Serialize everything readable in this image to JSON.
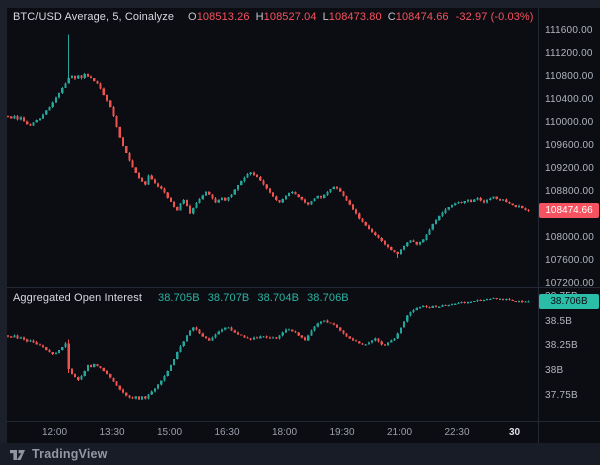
{
  "header": {
    "symbol": "BTC/USD Average, 5, Coinalyze",
    "o_label": "O",
    "o_value": "108513.26",
    "h_label": "H",
    "h_value": "108527.04",
    "l_label": "L",
    "l_value": "108473.80",
    "c_label": "C",
    "c_value": "108474.66",
    "change": "-32.97 (-0.03%)"
  },
  "oi_panel": {
    "title": "Aggregated Open Interest",
    "open": "38.705B",
    "high": "38.707B",
    "low": "38.704B",
    "close": "38.706B"
  },
  "price_axis": {
    "tag": "108474.66"
  },
  "oi_axis": {
    "tag": "38.706B"
  },
  "time_axis": {
    "labels": [
      {
        "text": "12:00",
        "major": false
      },
      {
        "text": "13:30",
        "major": false
      },
      {
        "text": "15:00",
        "major": false
      },
      {
        "text": "16:30",
        "major": false
      },
      {
        "text": "18:00",
        "major": false
      },
      {
        "text": "19:30",
        "major": false
      },
      {
        "text": "21:00",
        "major": false
      },
      {
        "text": "22:30",
        "major": false
      },
      {
        "text": "30",
        "major": true
      }
    ]
  },
  "footer": {
    "brand": "TradingView"
  },
  "colors": {
    "up": "#26a69a",
    "down": "#ef5350",
    "price_tag_bg": "#f7525f",
    "oi_tag_bg": "#2abda8",
    "background": "#0b0d12",
    "frame": "#1b202b"
  },
  "chart_data": [
    {
      "type": "candlestick",
      "pane": "price",
      "title": "BTC/USD Average, 5, Coinalyze",
      "interval_minutes": 5,
      "legend_ohlc": {
        "open": 108513.26,
        "high": 108527.04,
        "low": 108473.8,
        "close": 108474.66,
        "change": -32.97,
        "change_pct": -0.03
      },
      "last_price": 108474.66,
      "ylim": [
        107080,
        111700
      ],
      "y_ticks": [
        111600,
        111200,
        110800,
        110400,
        110000,
        109600,
        109200,
        108800,
        108400,
        108000,
        107600,
        107200
      ],
      "grid": false,
      "closes": [
        110110,
        110080,
        110120,
        110060,
        110100,
        110030,
        109980,
        109960,
        110010,
        110050,
        110080,
        110150,
        110220,
        110280,
        110360,
        110440,
        110520,
        110610,
        110690,
        110780,
        110820,
        110770,
        110830,
        110780,
        110850,
        110810,
        110780,
        110730,
        110690,
        110600,
        110490,
        110390,
        110280,
        110120,
        109930,
        109750,
        109600,
        109480,
        109350,
        109230,
        109130,
        109040,
        108980,
        108930,
        109090,
        109020,
        108950,
        108900,
        108860,
        108790,
        108700,
        108630,
        108540,
        108480,
        108600,
        108660,
        108560,
        108430,
        108520,
        108610,
        108680,
        108740,
        108800,
        108760,
        108690,
        108620,
        108660,
        108700,
        108650,
        108710,
        108760,
        108840,
        108920,
        108990,
        109050,
        109110,
        109140,
        109100,
        109060,
        109000,
        108930,
        108860,
        108790,
        108720,
        108660,
        108620,
        108680,
        108730,
        108780,
        108800,
        108760,
        108710,
        108670,
        108620,
        108580,
        108640,
        108690,
        108730,
        108700,
        108750,
        108800,
        108850,
        108890,
        108860,
        108810,
        108730,
        108650,
        108580,
        108500,
        108430,
        108340,
        108280,
        108220,
        108160,
        108100,
        108050,
        108000,
        107950,
        107890,
        107840,
        107790,
        107760,
        107720,
        107800,
        107860,
        107920,
        107960,
        107930,
        107890,
        107930,
        107970,
        108060,
        108150,
        108240,
        108310,
        108380,
        108440,
        108500,
        108540,
        108570,
        108600,
        108630,
        108610,
        108640,
        108660,
        108630,
        108670,
        108700,
        108650,
        108620,
        108660,
        108690,
        108720,
        108680,
        108650,
        108670,
        108630,
        108600,
        108570,
        108540,
        108560,
        108520,
        108490,
        108474.66
      ],
      "wick_overrides": {
        "19": {
          "high": 111540
        },
        "122": {
          "low": 107650
        }
      }
    },
    {
      "type": "candlestick",
      "pane": "open_interest",
      "title": "Aggregated Open Interest",
      "unit": "B",
      "legend_ohlc": {
        "open": 38.705,
        "high": 38.707,
        "low": 38.704,
        "close": 38.706
      },
      "last_value": 38.706,
      "ylim": [
        37.62,
        38.82
      ],
      "y_ticks": [
        38.75,
        38.5,
        38.25,
        38,
        37.75
      ],
      "grid": false,
      "closes": [
        38.35,
        38.34,
        38.36,
        38.33,
        38.34,
        38.32,
        38.3,
        38.31,
        38.29,
        38.27,
        38.26,
        38.24,
        38.21,
        38.19,
        38.17,
        38.18,
        38.21,
        38.24,
        38.28,
        38.02,
        37.97,
        37.94,
        37.91,
        37.95,
        38.0,
        38.06,
        38.04,
        38.07,
        38.05,
        38.03,
        38.0,
        37.97,
        37.93,
        37.89,
        37.85,
        37.81,
        37.78,
        37.75,
        37.73,
        37.72,
        37.74,
        37.71,
        37.74,
        37.72,
        37.76,
        37.79,
        37.82,
        37.86,
        37.9,
        37.95,
        38.0,
        38.06,
        38.12,
        38.19,
        38.25,
        38.3,
        38.36,
        38.41,
        38.44,
        38.42,
        38.38,
        38.35,
        38.33,
        38.31,
        38.34,
        38.37,
        38.4,
        38.42,
        38.44,
        38.44,
        38.41,
        38.39,
        38.37,
        38.36,
        38.34,
        38.33,
        38.32,
        38.34,
        38.33,
        38.35,
        38.35,
        38.34,
        38.33,
        38.34,
        38.33,
        38.36,
        38.39,
        38.42,
        38.42,
        38.4,
        38.39,
        38.36,
        38.34,
        38.31,
        38.36,
        38.41,
        38.45,
        38.48,
        38.5,
        38.51,
        38.49,
        38.48,
        38.47,
        38.44,
        38.41,
        38.38,
        38.35,
        38.33,
        38.31,
        38.3,
        38.28,
        38.27,
        38.27,
        38.29,
        38.31,
        38.33,
        38.3,
        38.27,
        38.26,
        38.29,
        38.31,
        38.33,
        38.38,
        38.44,
        38.5,
        38.56,
        38.6,
        38.62,
        38.64,
        38.65,
        38.66,
        38.65,
        38.64,
        38.66,
        38.65,
        38.65,
        38.67,
        38.66,
        38.67,
        38.68,
        38.68,
        38.69,
        38.7,
        38.69,
        38.7,
        38.7,
        38.71,
        38.72,
        38.71,
        38.72,
        38.73,
        38.73,
        38.74,
        38.73,
        38.73,
        38.72,
        38.73,
        38.72,
        38.71,
        38.7,
        38.71,
        38.7,
        38.705,
        38.706
      ],
      "wick_overrides": {
        "19": {
          "high": 38.32,
          "low": 37.98
        }
      }
    }
  ]
}
